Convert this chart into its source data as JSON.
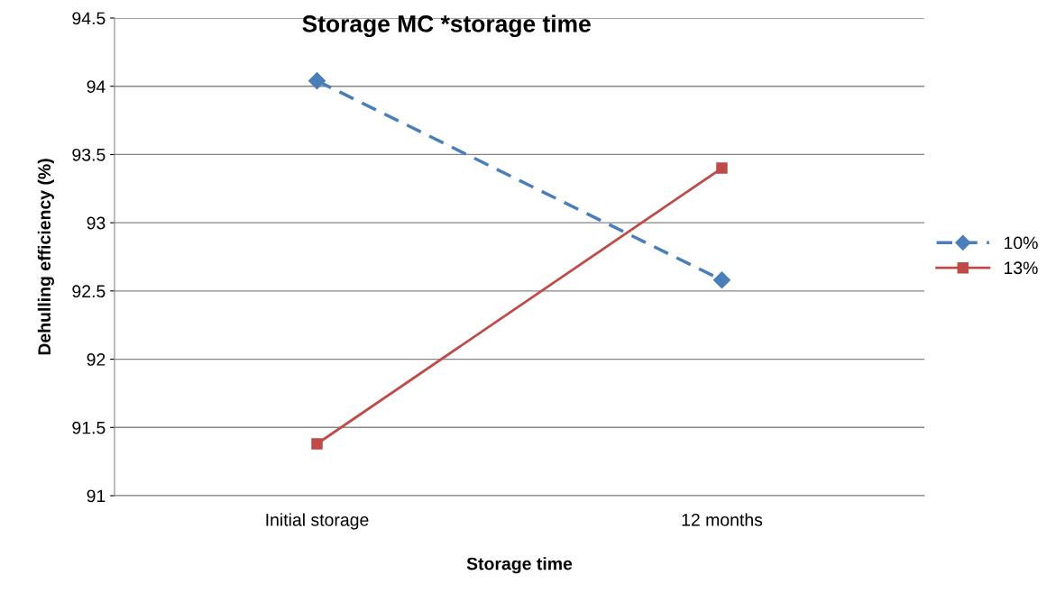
{
  "chart_data": {
    "type": "line",
    "title": "Storage MC *storage time",
    "xlabel": "Storage time",
    "ylabel": "Dehulling efficiency (%)",
    "categories": [
      "Initial storage",
      "12 months"
    ],
    "series": [
      {
        "name": "10%",
        "color": "#4a7ebb",
        "values": [
          94.04,
          92.58
        ],
        "marker": "diamond",
        "line_style": "dashed"
      },
      {
        "name": "13%",
        "color": "#be4b48",
        "values": [
          91.38,
          93.4
        ],
        "marker": "square",
        "line_style": "solid"
      }
    ],
    "ylim": [
      91,
      94.5
    ],
    "yticks": [
      91,
      91.5,
      92,
      92.5,
      93,
      93.5,
      94,
      94.5
    ],
    "grid": "y",
    "legend": "right"
  }
}
